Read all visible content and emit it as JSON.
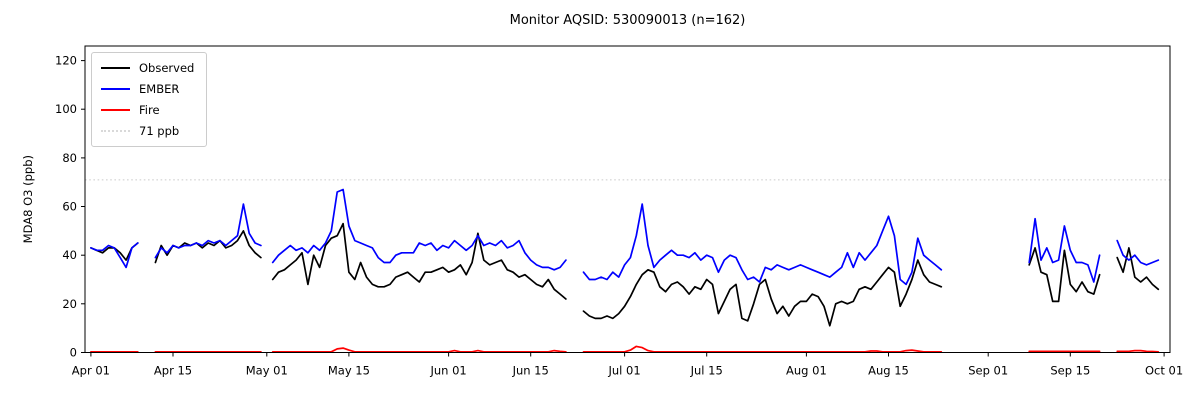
{
  "chart_data": {
    "type": "line",
    "title": "Monitor AQSID: 530090013 (n=162)",
    "ylabel": "MDA8 O3 (ppb)",
    "xlabel": "",
    "grid": false,
    "legend_position": "upper-left",
    "x_unit": "days since Apr 01",
    "xlim": [
      -1,
      184
    ],
    "ylim": [
      0,
      126
    ],
    "yticks": [
      0,
      20,
      40,
      60,
      80,
      100,
      120
    ],
    "xticks": [
      {
        "day": 0,
        "label": "Apr 01"
      },
      {
        "day": 14,
        "label": "Apr 15"
      },
      {
        "day": 30,
        "label": "May 01"
      },
      {
        "day": 44,
        "label": "May 15"
      },
      {
        "day": 61,
        "label": "Jun 01"
      },
      {
        "day": 75,
        "label": "Jun 15"
      },
      {
        "day": 91,
        "label": "Jul 01"
      },
      {
        "day": 105,
        "label": "Jul 15"
      },
      {
        "day": 122,
        "label": "Aug 01"
      },
      {
        "day": 136,
        "label": "Aug 15"
      },
      {
        "day": 153,
        "label": "Sep 01"
      },
      {
        "day": 167,
        "label": "Sep 15"
      },
      {
        "day": 183,
        "label": "Oct 01"
      }
    ],
    "threshold_line": {
      "label": "71 ppb",
      "value": 71,
      "color": "#d9d9d9",
      "dash": "dotted"
    },
    "days": [
      0,
      1,
      2,
      3,
      4,
      5,
      6,
      7,
      8,
      11,
      12,
      13,
      14,
      15,
      16,
      17,
      18,
      19,
      20,
      21,
      22,
      23,
      24,
      25,
      26,
      27,
      28,
      29,
      31,
      32,
      33,
      34,
      35,
      36,
      37,
      38,
      39,
      40,
      41,
      42,
      43,
      44,
      45,
      46,
      47,
      48,
      49,
      50,
      51,
      52,
      53,
      54,
      55,
      56,
      57,
      58,
      59,
      60,
      61,
      62,
      63,
      64,
      65,
      66,
      67,
      68,
      69,
      70,
      71,
      72,
      73,
      74,
      75,
      76,
      77,
      78,
      79,
      80,
      81,
      84,
      85,
      86,
      87,
      88,
      89,
      90,
      91,
      92,
      93,
      94,
      95,
      96,
      97,
      98,
      99,
      100,
      101,
      102,
      103,
      104,
      105,
      106,
      107,
      108,
      109,
      110,
      111,
      112,
      113,
      114,
      115,
      116,
      117,
      118,
      119,
      120,
      121,
      122,
      123,
      124,
      125,
      126,
      127,
      128,
      129,
      130,
      131,
      132,
      133,
      134,
      135,
      136,
      137,
      138,
      139,
      140,
      141,
      142,
      143,
      144,
      145,
      160,
      161,
      162,
      163,
      164,
      165,
      166,
      167,
      168,
      169,
      170,
      171,
      172,
      175,
      176,
      177,
      178,
      179,
      180,
      181,
      182
    ],
    "series": [
      {
        "name": "Observed",
        "color": "#000000",
        "values": [
          43,
          42,
          41,
          43,
          43,
          41,
          38,
          43,
          45,
          37,
          44,
          40,
          44,
          43,
          45,
          44,
          45,
          43,
          45,
          44,
          46,
          43,
          44,
          46,
          50,
          44,
          41,
          39,
          30,
          33,
          34,
          36,
          38,
          41,
          28,
          40,
          35,
          44,
          47,
          48,
          53,
          33,
          30,
          37,
          31,
          28,
          27,
          27,
          28,
          31,
          32,
          33,
          31,
          29,
          33,
          33,
          34,
          35,
          33,
          34,
          36,
          32,
          37,
          49,
          38,
          36,
          37,
          38,
          34,
          33,
          31,
          32,
          30,
          28,
          27,
          30,
          26,
          24,
          22,
          17,
          15,
          14,
          14,
          15,
          14,
          16,
          19,
          23,
          28,
          32,
          34,
          33,
          27,
          25,
          28,
          29,
          27,
          24,
          27,
          26,
          30,
          28,
          16,
          21,
          26,
          28,
          14,
          13,
          20,
          28,
          30,
          22,
          16,
          19,
          15,
          19,
          21,
          21,
          24,
          23,
          19,
          11,
          20,
          21,
          20,
          21,
          26,
          27,
          26,
          29,
          32,
          35,
          33,
          19,
          24,
          30,
          38,
          32,
          29,
          28,
          27,
          36,
          43,
          33,
          32,
          21,
          21,
          42,
          28,
          25,
          29,
          25,
          24,
          32,
          39,
          33,
          43,
          31,
          29,
          31,
          28,
          26
        ]
      },
      {
        "name": "EMBER",
        "color": "#0000ff",
        "values": [
          43,
          42,
          42,
          44,
          43,
          39,
          35,
          43,
          45,
          39,
          43,
          41,
          44,
          43,
          44,
          44,
          45,
          44,
          46,
          45,
          46,
          44,
          46,
          48,
          61,
          49,
          45,
          44,
          37,
          40,
          42,
          44,
          42,
          43,
          41,
          44,
          42,
          45,
          50,
          66,
          67,
          52,
          46,
          45,
          44,
          43,
          39,
          37,
          37,
          40,
          41,
          41,
          41,
          45,
          44,
          45,
          42,
          44,
          43,
          46,
          44,
          42,
          44,
          48,
          44,
          45,
          44,
          46,
          43,
          44,
          46,
          41,
          38,
          36,
          35,
          35,
          34,
          35,
          38,
          33,
          30,
          30,
          31,
          30,
          33,
          31,
          36,
          39,
          48,
          61,
          44,
          35,
          38,
          40,
          42,
          40,
          40,
          39,
          41,
          38,
          40,
          39,
          33,
          38,
          40,
          39,
          34,
          30,
          31,
          29,
          35,
          34,
          36,
          35,
          34,
          35,
          36,
          35,
          34,
          33,
          32,
          31,
          33,
          35,
          41,
          35,
          41,
          38,
          41,
          44,
          50,
          56,
          48,
          30,
          28,
          33,
          47,
          40,
          38,
          36,
          34,
          37,
          55,
          38,
          43,
          37,
          38,
          52,
          42,
          37,
          37,
          36,
          29,
          40,
          46,
          40,
          38,
          40,
          37,
          36,
          37,
          38
        ]
      },
      {
        "name": "Fire",
        "color": "#ff0000",
        "values": [
          0.3,
          0.3,
          0.3,
          0.3,
          0.3,
          0.3,
          0.3,
          0.3,
          0.3,
          0.3,
          0.3,
          0.3,
          0.3,
          0.3,
          0.3,
          0.3,
          0.3,
          0.3,
          0.3,
          0.3,
          0.3,
          0.3,
          0.3,
          0.3,
          0.3,
          0.3,
          0.3,
          0.3,
          0.3,
          0.3,
          0.3,
          0.3,
          0.3,
          0.3,
          0.3,
          0.3,
          0.3,
          0.3,
          0.3,
          1.5,
          1.8,
          1.0,
          0.3,
          0.3,
          0.3,
          0.3,
          0.3,
          0.3,
          0.3,
          0.3,
          0.3,
          0.3,
          0.3,
          0.3,
          0.3,
          0.3,
          0.3,
          0.3,
          0.3,
          0.8,
          0.3,
          0.3,
          0.3,
          0.8,
          0.3,
          0.3,
          0.3,
          0.3,
          0.3,
          0.3,
          0.3,
          0.3,
          0.3,
          0.3,
          0.3,
          0.3,
          0.8,
          0.5,
          0.3,
          0.3,
          0.3,
          0.3,
          0.3,
          0.3,
          0.3,
          0.3,
          0.3,
          1.0,
          2.5,
          2.0,
          0.8,
          0.3,
          0.3,
          0.3,
          0.3,
          0.3,
          0.3,
          0.3,
          0.3,
          0.3,
          0.3,
          0.3,
          0.3,
          0.3,
          0.3,
          0.3,
          0.3,
          0.3,
          0.3,
          0.3,
          0.3,
          0.3,
          0.3,
          0.3,
          0.3,
          0.3,
          0.3,
          0.3,
          0.3,
          0.3,
          0.3,
          0.3,
          0.3,
          0.3,
          0.3,
          0.3,
          0.3,
          0.3,
          0.6,
          0.6,
          0.3,
          0.3,
          0.3,
          0.3,
          0.8,
          1.0,
          0.6,
          0.3,
          0.3,
          0.3,
          0.3,
          0.5,
          0.5,
          0.5,
          0.5,
          0.5,
          0.5,
          0.5,
          0.5,
          0.5,
          0.5,
          0.5,
          0.5,
          0.5,
          0.5,
          0.5,
          0.5,
          0.8,
          0.8,
          0.5,
          0.4,
          0.3
        ]
      }
    ]
  }
}
